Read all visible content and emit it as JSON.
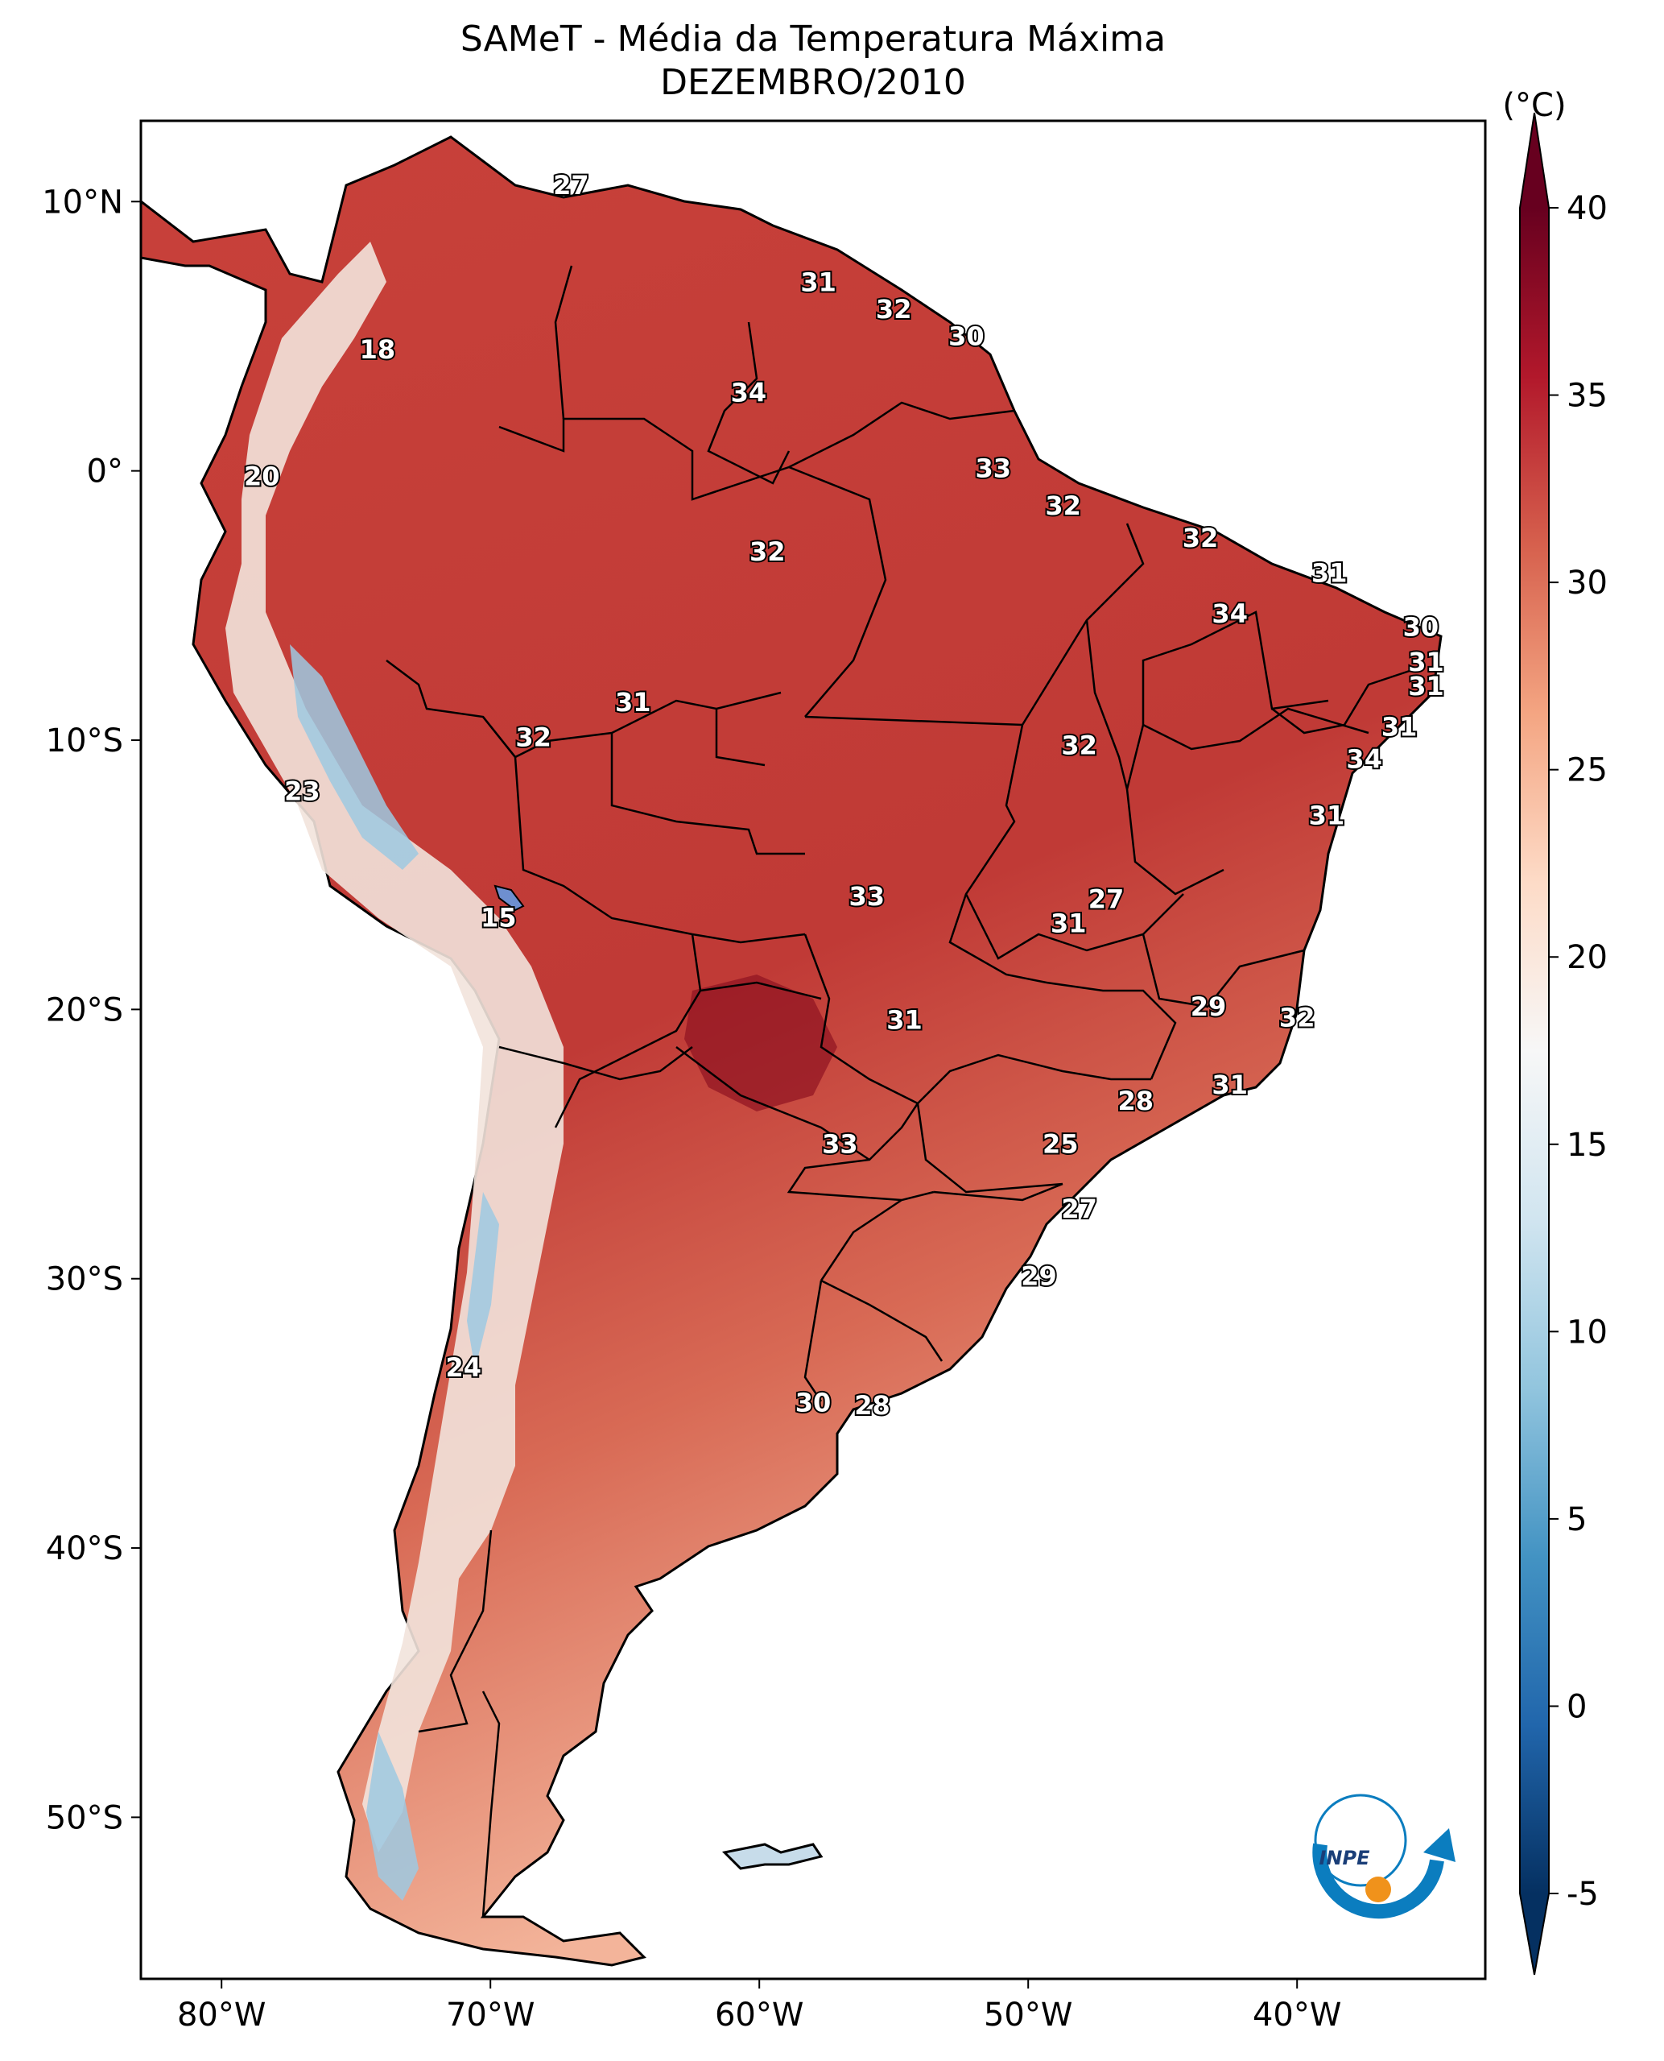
{
  "title": {
    "line1": "SAMeT - Média da Temperatura Máxima",
    "line2": "DEZEMBRO/2010"
  },
  "map": {
    "lon_range": [
      -83,
      -33
    ],
    "lat_range": [
      -56,
      13
    ],
    "lon_ticks": [
      {
        "lon": -80,
        "label": "80°W"
      },
      {
        "lon": -70,
        "label": "70°W"
      },
      {
        "lon": -60,
        "label": "60°W"
      },
      {
        "lon": -50,
        "label": "50°W"
      },
      {
        "lon": -40,
        "label": "40°W"
      }
    ],
    "lat_ticks": [
      {
        "lat": 10,
        "label": "10°N"
      },
      {
        "lat": 0,
        "label": "0°"
      },
      {
        "lat": -10,
        "label": "10°S"
      },
      {
        "lat": -20,
        "label": "20°S"
      },
      {
        "lat": -30,
        "label": "30°S"
      },
      {
        "lat": -40,
        "label": "40°S"
      },
      {
        "lat": -50,
        "label": "50°S"
      }
    ],
    "value_labels": [
      {
        "lon": -67.0,
        "lat": 10.6,
        "text": "27"
      },
      {
        "lon": -74.2,
        "lat": 4.5,
        "text": "18"
      },
      {
        "lon": -78.5,
        "lat": -0.2,
        "text": "20"
      },
      {
        "lon": -57.8,
        "lat": 7.0,
        "text": "31"
      },
      {
        "lon": -55.0,
        "lat": 6.0,
        "text": "32"
      },
      {
        "lon": -52.3,
        "lat": 5.0,
        "text": "30"
      },
      {
        "lon": -60.4,
        "lat": 2.9,
        "text": "34"
      },
      {
        "lon": -51.3,
        "lat": 0.1,
        "text": "33"
      },
      {
        "lon": -48.7,
        "lat": -1.3,
        "text": "32"
      },
      {
        "lon": -59.7,
        "lat": -3.0,
        "text": "32"
      },
      {
        "lon": -43.6,
        "lat": -2.5,
        "text": "32"
      },
      {
        "lon": -38.8,
        "lat": -3.8,
        "text": "31"
      },
      {
        "lon": -42.5,
        "lat": -5.3,
        "text": "34"
      },
      {
        "lon": -35.4,
        "lat": -5.8,
        "text": "30"
      },
      {
        "lon": -35.2,
        "lat": -7.1,
        "text": "31"
      },
      {
        "lon": -35.2,
        "lat": -8.0,
        "text": "31"
      },
      {
        "lon": -36.2,
        "lat": -9.5,
        "text": "31"
      },
      {
        "lon": -37.5,
        "lat": -10.7,
        "text": "34"
      },
      {
        "lon": -64.7,
        "lat": -8.6,
        "text": "31"
      },
      {
        "lon": -68.4,
        "lat": -9.9,
        "text": "32"
      },
      {
        "lon": -48.1,
        "lat": -10.2,
        "text": "32"
      },
      {
        "lon": -77.0,
        "lat": -11.9,
        "text": "23"
      },
      {
        "lon": -38.9,
        "lat": -12.8,
        "text": "31"
      },
      {
        "lon": -56.0,
        "lat": -15.8,
        "text": "33"
      },
      {
        "lon": -47.1,
        "lat": -15.9,
        "text": "27"
      },
      {
        "lon": -48.5,
        "lat": -16.8,
        "text": "31"
      },
      {
        "lon": -69.7,
        "lat": -16.6,
        "text": "15"
      },
      {
        "lon": -43.3,
        "lat": -19.9,
        "text": "29"
      },
      {
        "lon": -54.6,
        "lat": -20.4,
        "text": "31"
      },
      {
        "lon": -40.0,
        "lat": -20.3,
        "text": "32"
      },
      {
        "lon": -42.5,
        "lat": -22.8,
        "text": "31"
      },
      {
        "lon": -46.0,
        "lat": -23.4,
        "text": "28"
      },
      {
        "lon": -57.0,
        "lat": -25.0,
        "text": "33"
      },
      {
        "lon": -48.8,
        "lat": -25.0,
        "text": "25"
      },
      {
        "lon": -48.1,
        "lat": -27.4,
        "text": "27"
      },
      {
        "lon": -49.6,
        "lat": -29.9,
        "text": "29"
      },
      {
        "lon": -71.0,
        "lat": -33.3,
        "text": "24"
      },
      {
        "lon": -58.0,
        "lat": -34.6,
        "text": "30"
      },
      {
        "lon": -55.8,
        "lat": -34.7,
        "text": "28"
      }
    ]
  },
  "colorbar": {
    "unit": "(°C)",
    "min": -5,
    "max": 40,
    "ticks": [
      {
        "value": 40,
        "label": "40"
      },
      {
        "value": 35,
        "label": "35"
      },
      {
        "value": 30,
        "label": "30"
      },
      {
        "value": 25,
        "label": "25"
      },
      {
        "value": 20,
        "label": "20"
      },
      {
        "value": 15,
        "label": "15"
      },
      {
        "value": 10,
        "label": "10"
      },
      {
        "value": 5,
        "label": "5"
      },
      {
        "value": 0,
        "label": "0"
      },
      {
        "value": -5,
        "label": "-5"
      }
    ],
    "colors": [
      "#053061",
      "#2166ac",
      "#4393c3",
      "#92c5de",
      "#d1e5f0",
      "#f7f7f7",
      "#fddbc7",
      "#f4a582",
      "#d6604d",
      "#b2182b",
      "#67001f"
    ]
  },
  "logo": {
    "text": "INPE",
    "ring_color": "#0b7dbf",
    "dot_color": "#f0921b"
  }
}
